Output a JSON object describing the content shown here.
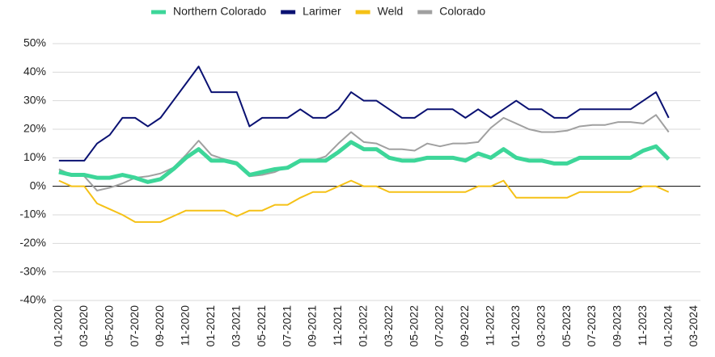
{
  "chart_data": {
    "type": "line",
    "categories": [
      "01-2020",
      null,
      "03-2020",
      null,
      "05-2020",
      null,
      "07-2020",
      null,
      "09-2020",
      null,
      "11-2020",
      null,
      "01-2021",
      null,
      "03-2021",
      null,
      "05-2021",
      null,
      "07-2021",
      null,
      "09-2021",
      null,
      "11-2021",
      null,
      "01-2022",
      null,
      "03-2022",
      null,
      "05-2022",
      null,
      "07-2022",
      null,
      "09-2022",
      null,
      "11-2022",
      null,
      "01-2023",
      null,
      "03-2023",
      null,
      "05-2023",
      null,
      "07-2023",
      null,
      "09-2023",
      null,
      "11-2023",
      null,
      "01-2024",
      null,
      "03-2024"
    ],
    "series": [
      {
        "name": "Northern Colorado",
        "color": "#3dd699",
        "values": [
          5,
          4,
          4,
          3,
          3,
          4,
          3,
          1.5,
          2.5,
          6,
          10,
          13,
          9,
          9,
          8,
          4,
          5,
          6,
          6.5,
          9,
          9,
          9,
          12,
          15.5,
          13,
          13,
          10,
          9,
          9,
          10,
          10,
          10,
          9,
          11.5,
          10,
          13,
          10,
          9,
          9,
          8,
          8,
          10,
          10,
          10,
          10,
          10,
          12.5,
          14,
          9.5,
          null,
          null
        ]
      },
      {
        "name": "Larimer",
        "color": "#0a1172",
        "values": [
          9,
          9,
          9,
          15,
          18,
          24,
          24,
          21,
          24,
          30,
          36,
          42,
          33,
          33,
          33,
          21,
          24,
          24,
          24,
          27,
          24,
          24,
          27,
          33,
          30,
          30,
          27,
          24,
          24,
          27,
          27,
          27,
          24,
          27,
          24,
          27,
          30,
          27,
          27,
          24,
          24,
          27,
          27,
          27,
          27,
          27,
          30,
          33,
          24,
          null,
          null
        ]
      },
      {
        "name": "Weld",
        "color": "#f5c116",
        "values": [
          2,
          0,
          0,
          -6,
          -8,
          -10,
          -12.5,
          -12.5,
          -12.5,
          -10.5,
          -8.5,
          -8.5,
          -8.5,
          -8.5,
          -10.5,
          -8.5,
          -8.5,
          -6.5,
          -6.5,
          -4,
          -2,
          -2,
          0,
          2,
          0,
          0,
          -2,
          -2,
          -2,
          -2,
          -2,
          -2,
          -2,
          0,
          0,
          2,
          -4,
          -4,
          -4,
          -4,
          -4,
          -2,
          -2,
          -2,
          -2,
          -2,
          0,
          0,
          -2,
          null,
          null
        ]
      },
      {
        "name": "Colorado",
        "color": "#a0a0a0",
        "values": [
          6,
          4,
          3.5,
          -1.5,
          -0.5,
          1,
          3,
          3.5,
          4.5,
          6.5,
          11,
          16,
          11,
          9.5,
          8.5,
          3.5,
          4,
          5,
          7,
          8.5,
          9,
          10.5,
          15,
          19,
          15.5,
          15,
          13,
          13,
          12.5,
          15,
          14,
          15,
          15,
          15.5,
          20.5,
          24,
          22,
          20,
          19,
          19,
          19.5,
          21,
          21.5,
          21.5,
          22.5,
          22.5,
          22,
          25,
          19,
          null,
          null
        ]
      }
    ],
    "ylim": [
      -40,
      50
    ],
    "yticks": [
      {
        "value": -40,
        "label": "-40%"
      },
      {
        "value": -30,
        "label": "-30%"
      },
      {
        "value": -20,
        "label": "-20%"
      },
      {
        "value": -10,
        "label": "-10%"
      },
      {
        "value": 0,
        "label": "0%"
      },
      {
        "value": 10,
        "label": "10%"
      },
      {
        "value": 20,
        "label": "20%"
      },
      {
        "value": 30,
        "label": "30%"
      },
      {
        "value": 40,
        "label": "40%"
      },
      {
        "value": 50,
        "label": "50%"
      }
    ],
    "grid": true
  }
}
